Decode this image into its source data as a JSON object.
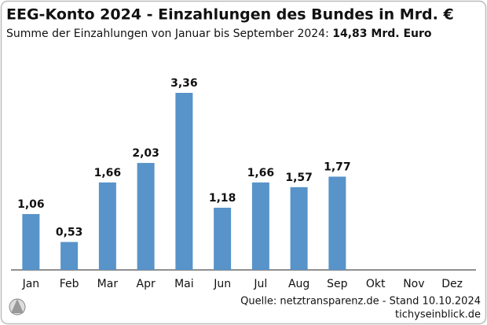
{
  "chart_data": {
    "type": "bar",
    "title": "EEG-Konto 2024 - Einzahlungen des Bundes in Mrd. €",
    "subtitle": "Summe der Einzahlungen von Januar bis September 2024: ",
    "subtitle_highlight": "14,83 Mrd. Euro",
    "categories": [
      "Jan",
      "Feb",
      "Mar",
      "Apr",
      "Mai",
      "Jun",
      "Jul",
      "Aug",
      "Sep",
      "Okt",
      "Nov",
      "Dez"
    ],
    "values": [
      1.06,
      0.53,
      1.66,
      2.03,
      3.36,
      1.18,
      1.66,
      1.57,
      1.77,
      null,
      null,
      null
    ],
    "value_labels": [
      "1,06",
      "0,53",
      "1,66",
      "2,03",
      "3,36",
      "1,18",
      "1,66",
      "1,57",
      "1,77",
      null,
      null,
      null
    ],
    "color": "#5893c9",
    "source": "Quelle: netztransparenz.de - Stand 10.10.2024",
    "publisher": "tichyseinblick.de"
  }
}
